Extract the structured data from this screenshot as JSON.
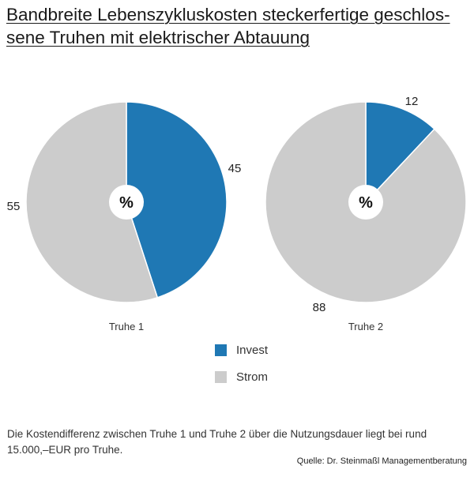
{
  "title_line1": "Bandbreite Lebenszykluskosten steckerfertige geschlos-",
  "title_line2": "sene Truhen mit elektrischer Abtauung",
  "footnote": "Die Kostendifferenz zwischen Truhe 1 und Truhe 2 über die Nutzungsdauer liegt bei rund 15.000,–EUR pro Truhe.",
  "source": "Quelle: Dr. Steinmaßl Managementberatung",
  "colors": {
    "invest": "#1f78b4",
    "strom": "#cccccc",
    "center": "#ffffff"
  },
  "chart_data": [
    {
      "type": "pie",
      "name": "Truhe 1",
      "center_label": "%",
      "slices": [
        {
          "label": "Invest",
          "value": 45
        },
        {
          "label": "Strom",
          "value": 55
        }
      ]
    },
    {
      "type": "pie",
      "name": "Truhe 2",
      "center_label": "%",
      "slices": [
        {
          "label": "Invest",
          "value": 12
        },
        {
          "label": "Strom",
          "value": 88
        }
      ]
    }
  ],
  "legend": [
    {
      "label": "Invest",
      "color_key": "invest"
    },
    {
      "label": "Strom",
      "color_key": "strom"
    }
  ]
}
